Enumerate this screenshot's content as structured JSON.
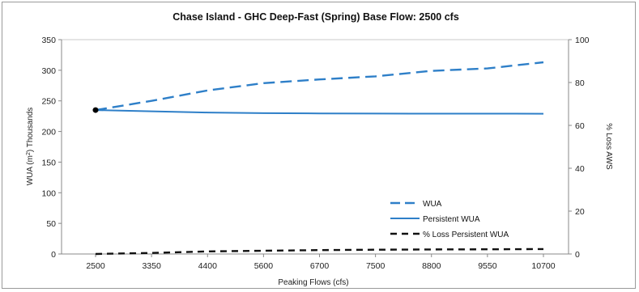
{
  "chart_data": {
    "type": "line",
    "title": "Chase Island -  GHC Deep-Fast (Spring)   Base Flow: 2500 cfs",
    "xlabel": "Peaking Flows (cfs)",
    "ylabel_left_prefix": "WUA (m",
    "ylabel_left_sup": "2",
    "ylabel_left_suffix": ")  Thousands",
    "ylabel_right": "% Loss AWS",
    "categories": [
      "2500",
      "3350",
      "4400",
      "5600",
      "6700",
      "7500",
      "8800",
      "9550",
      "10700"
    ],
    "ylim_left": [
      0,
      350
    ],
    "yticks_left": [
      0,
      50,
      100,
      150,
      200,
      250,
      300,
      350
    ],
    "ylim_right": [
      0,
      100
    ],
    "yticks_right": [
      0,
      20,
      40,
      60,
      80,
      100
    ],
    "grid": "horizontal-top-only",
    "legend_position": "bottom-right",
    "series": [
      {
        "name": "WUA",
        "axis": "left",
        "style": "long-dash",
        "color": "#2e7fc8",
        "values": [
          235,
          250,
          267,
          279,
          285,
          290,
          299,
          303,
          313
        ]
      },
      {
        "name": "Persistent  WUA",
        "axis": "left",
        "style": "solid",
        "color": "#2e7fc8",
        "values": [
          235,
          233,
          231,
          230,
          229.5,
          229.3,
          229.2,
          229.1,
          229
        ]
      },
      {
        "name": "% Loss Persistent WUA",
        "axis": "right",
        "style": "dash",
        "color": "#111111",
        "values": [
          0,
          0.5,
          1.2,
          1.5,
          1.8,
          2.0,
          2.1,
          2.2,
          2.3
        ]
      }
    ],
    "marker": {
      "category_index": 0,
      "value": 235,
      "axis": "left",
      "color": "#000000"
    }
  }
}
